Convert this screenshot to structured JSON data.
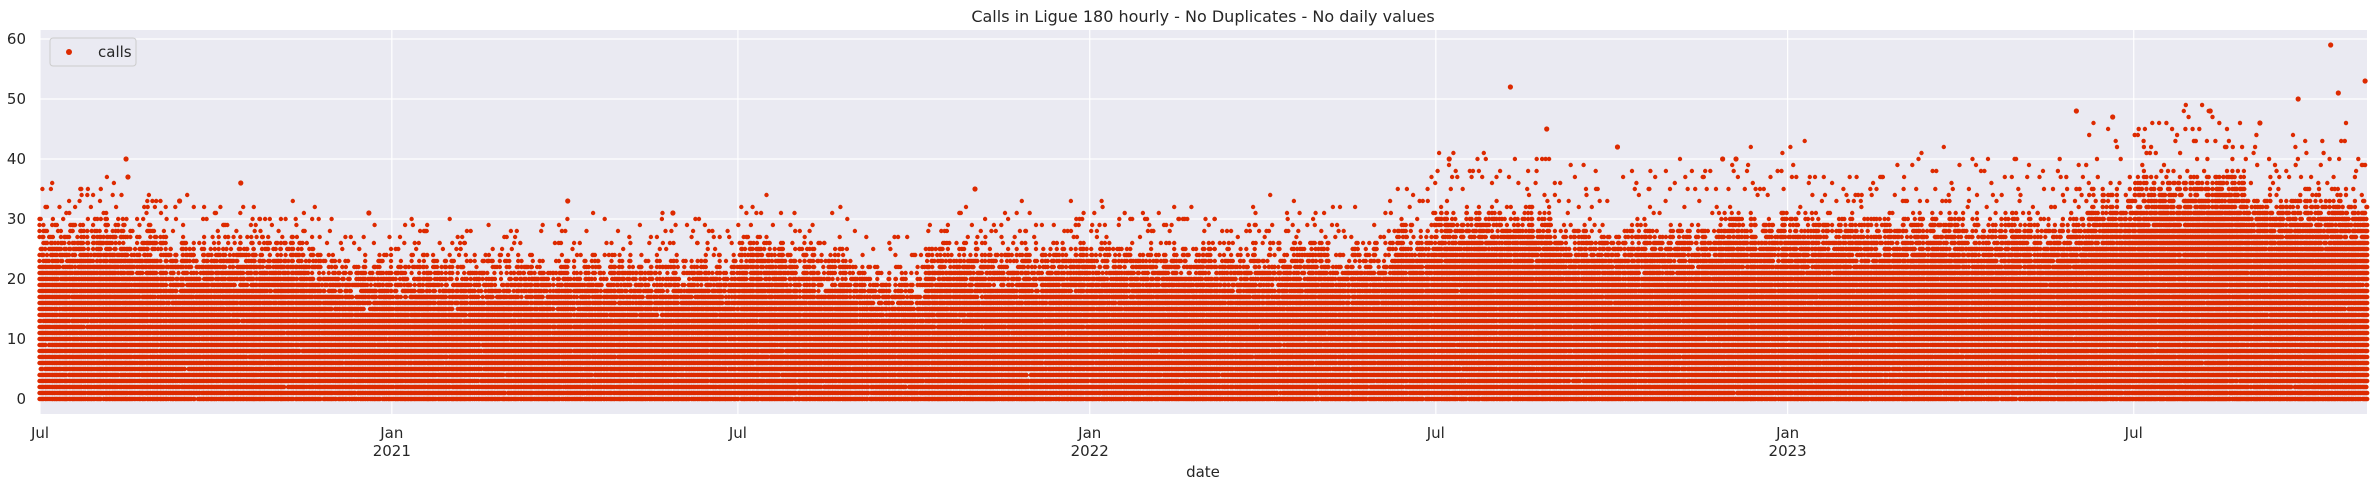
{
  "chart_data": {
    "type": "scatter",
    "title": "Calls in Ligue 180 hourly - No Duplicates - No daily values",
    "xlabel": "date",
    "ylabel": "",
    "x_range": [
      "2020-07-01",
      "2023-10-31"
    ],
    "ylim": [
      -2.5,
      61.5
    ],
    "y_ticks": [
      0,
      10,
      20,
      30,
      40,
      50,
      60
    ],
    "x_ticks": [
      {
        "date": "2020-07-01",
        "label": "Jul",
        "sublabel": ""
      },
      {
        "date": "2021-01-01",
        "label": "Jan",
        "sublabel": "2021"
      },
      {
        "date": "2021-07-01",
        "label": "Jul",
        "sublabel": ""
      },
      {
        "date": "2022-01-01",
        "label": "Jan",
        "sublabel": "2022"
      },
      {
        "date": "2022-07-01",
        "label": "Jul",
        "sublabel": ""
      },
      {
        "date": "2023-01-01",
        "label": "Jan",
        "sublabel": "2023"
      },
      {
        "date": "2023-07-01",
        "label": "Jul",
        "sublabel": ""
      }
    ],
    "grid": true,
    "legend": {
      "position": "top-left",
      "entries": [
        "calls"
      ]
    },
    "series": [
      {
        "name": "calls",
        "color": "#dd2a00",
        "marker": "circle",
        "values_summary": "dense hourly counts, mostly 0-25",
        "notable_points": [
          {
            "date": "2020-08-15",
            "value": 40
          },
          {
            "date": "2020-08-16",
            "value": 37
          },
          {
            "date": "2020-09-12",
            "value": 33
          },
          {
            "date": "2020-10-14",
            "value": 36
          },
          {
            "date": "2020-12-20",
            "value": 31
          },
          {
            "date": "2021-04-03",
            "value": 33
          },
          {
            "date": "2021-05-28",
            "value": 31
          },
          {
            "date": "2021-11-02",
            "value": 35
          },
          {
            "date": "2022-07-08",
            "value": 40
          },
          {
            "date": "2022-08-09",
            "value": 52
          },
          {
            "date": "2022-08-28",
            "value": 45
          },
          {
            "date": "2022-10-04",
            "value": 42
          },
          {
            "date": "2022-11-28",
            "value": 40
          },
          {
            "date": "2022-12-05",
            "value": 40
          },
          {
            "date": "2023-06-01",
            "value": 48
          },
          {
            "date": "2023-06-20",
            "value": 47
          },
          {
            "date": "2023-08-10",
            "value": 48
          },
          {
            "date": "2023-09-05",
            "value": 46
          },
          {
            "date": "2023-09-25",
            "value": 50
          },
          {
            "date": "2023-10-12",
            "value": 59
          },
          {
            "date": "2023-10-16",
            "value": 51
          },
          {
            "date": "2023-10-30",
            "value": 53
          }
        ]
      }
    ]
  }
}
